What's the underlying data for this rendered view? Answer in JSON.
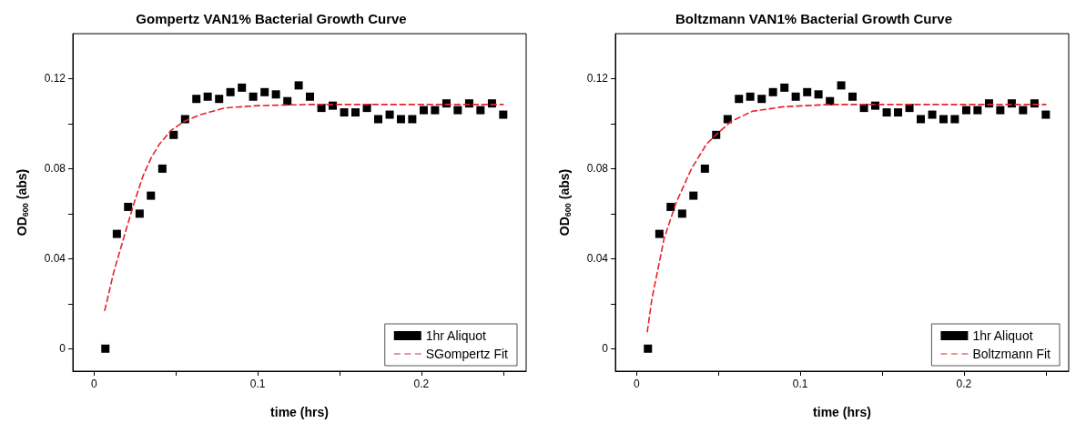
{
  "chart_data": [
    {
      "type": "scatter",
      "title": "Gompertz VAN1% Bacterial Growth Curve",
      "xlabel": "time (hrs)",
      "ylabel": "OD$_{600}$ (abs)",
      "x": [
        0.0069,
        0.0139,
        0.0208,
        0.0278,
        0.0347,
        0.0417,
        0.0486,
        0.0556,
        0.0625,
        0.0694,
        0.0764,
        0.0833,
        0.0903,
        0.0972,
        0.1042,
        0.1111,
        0.1181,
        0.125,
        0.1319,
        0.1389,
        0.1458,
        0.1528,
        0.1597,
        0.1667,
        0.1736,
        0.1806,
        0.1875,
        0.1944,
        0.2014,
        0.2083,
        0.2153,
        0.2222,
        0.2292,
        0.2361,
        0.2431,
        0.25
      ],
      "series": [
        {
          "name": "1hr Aliquot",
          "type": "scatter",
          "color": "#000000",
          "marker": "square",
          "values": [
            0.0,
            0.051,
            0.063,
            0.06,
            0.068,
            0.08,
            0.095,
            0.102,
            0.111,
            0.112,
            0.111,
            0.114,
            0.116,
            0.112,
            0.114,
            0.113,
            0.11,
            0.117,
            0.112,
            0.107,
            0.108,
            0.105,
            0.105,
            0.107,
            0.102,
            0.104,
            0.102,
            0.102,
            0.106,
            0.106,
            0.109,
            0.106,
            0.109,
            0.106,
            0.109,
            0.104
          ]
        },
        {
          "name": "SGompertz Fit",
          "type": "line",
          "color": "#e8202a",
          "marker": "none",
          "line_style": "dashed",
          "x": [
            0.0065,
            0.012,
            0.02,
            0.025,
            0.03,
            0.035,
            0.04,
            0.047,
            0.055,
            0.065,
            0.08,
            0.1,
            0.13,
            0.25
          ],
          "values": [
            0.017,
            0.034,
            0.054,
            0.066,
            0.077,
            0.085,
            0.091,
            0.097,
            0.101,
            0.104,
            0.107,
            0.108,
            0.1085,
            0.1085
          ]
        }
      ],
      "xlim": [
        -0.013,
        0.264
      ],
      "xticks": [
        0,
        {
          "value": 0.05,
          "label": null
        },
        0.1,
        {
          "value": 0.15,
          "label": null
        },
        0.2,
        {
          "value": 0.25,
          "label": null
        }
      ],
      "ylim": [
        -0.01,
        0.14
      ],
      "yticks": [
        0,
        {
          "value": 0.02,
          "label": null
        },
        0.04,
        {
          "value": 0.06,
          "label": null
        },
        0.08,
        {
          "value": 0.1,
          "label": null
        },
        0.12
      ],
      "grid": false,
      "legend": "bottom right"
    },
    {
      "type": "scatter",
      "title": "Boltzmann VAN1% Bacterial Growth Curve",
      "xlabel": "time (hrs)",
      "ylabel": "OD$_{600}$ (abs)",
      "x": [
        0.0069,
        0.0139,
        0.0208,
        0.0278,
        0.0347,
        0.0417,
        0.0486,
        0.0556,
        0.0625,
        0.0694,
        0.0764,
        0.0833,
        0.0903,
        0.0972,
        0.1042,
        0.1111,
        0.1181,
        0.125,
        0.1319,
        0.1389,
        0.1458,
        0.1528,
        0.1597,
        0.1667,
        0.1736,
        0.1806,
        0.1875,
        0.1944,
        0.2014,
        0.2083,
        0.2153,
        0.2222,
        0.2292,
        0.2361,
        0.2431,
        0.25
      ],
      "series": [
        {
          "name": "1hr Aliquot",
          "type": "scatter",
          "color": "#000000",
          "marker": "square",
          "values": [
            0.0,
            0.051,
            0.063,
            0.06,
            0.068,
            0.08,
            0.095,
            0.102,
            0.111,
            0.112,
            0.111,
            0.114,
            0.116,
            0.112,
            0.114,
            0.113,
            0.11,
            0.117,
            0.112,
            0.107,
            0.108,
            0.105,
            0.105,
            0.107,
            0.102,
            0.104,
            0.102,
            0.102,
            0.106,
            0.106,
            0.109,
            0.106,
            0.109,
            0.106,
            0.109,
            0.104
          ]
        },
        {
          "name": "Boltzmann Fit",
          "type": "line",
          "color": "#e8202a",
          "marker": "none",
          "line_style": "dashed",
          "x": [
            0.0065,
            0.0093,
            0.0168,
            0.0242,
            0.0335,
            0.0428,
            0.0484,
            0.0577,
            0.0708,
            0.0894,
            0.117,
            0.25
          ],
          "values": [
            0.0075,
            0.022,
            0.049,
            0.065,
            0.08,
            0.091,
            0.095,
            0.101,
            0.1055,
            0.1075,
            0.1085,
            0.1085
          ]
        }
      ],
      "xlim": [
        -0.013,
        0.264
      ],
      "xticks": [
        0,
        {
          "value": 0.05,
          "label": null
        },
        0.1,
        {
          "value": 0.15,
          "label": null
        },
        0.2,
        {
          "value": 0.25,
          "label": null
        }
      ],
      "ylim": [
        -0.01,
        0.14
      ],
      "yticks": [
        0,
        {
          "value": 0.02,
          "label": null
        },
        0.04,
        {
          "value": 0.06,
          "label": null
        },
        0.08,
        {
          "value": 0.1,
          "label": null
        },
        0.12
      ],
      "grid": false,
      "legend": "bottom right"
    }
  ]
}
